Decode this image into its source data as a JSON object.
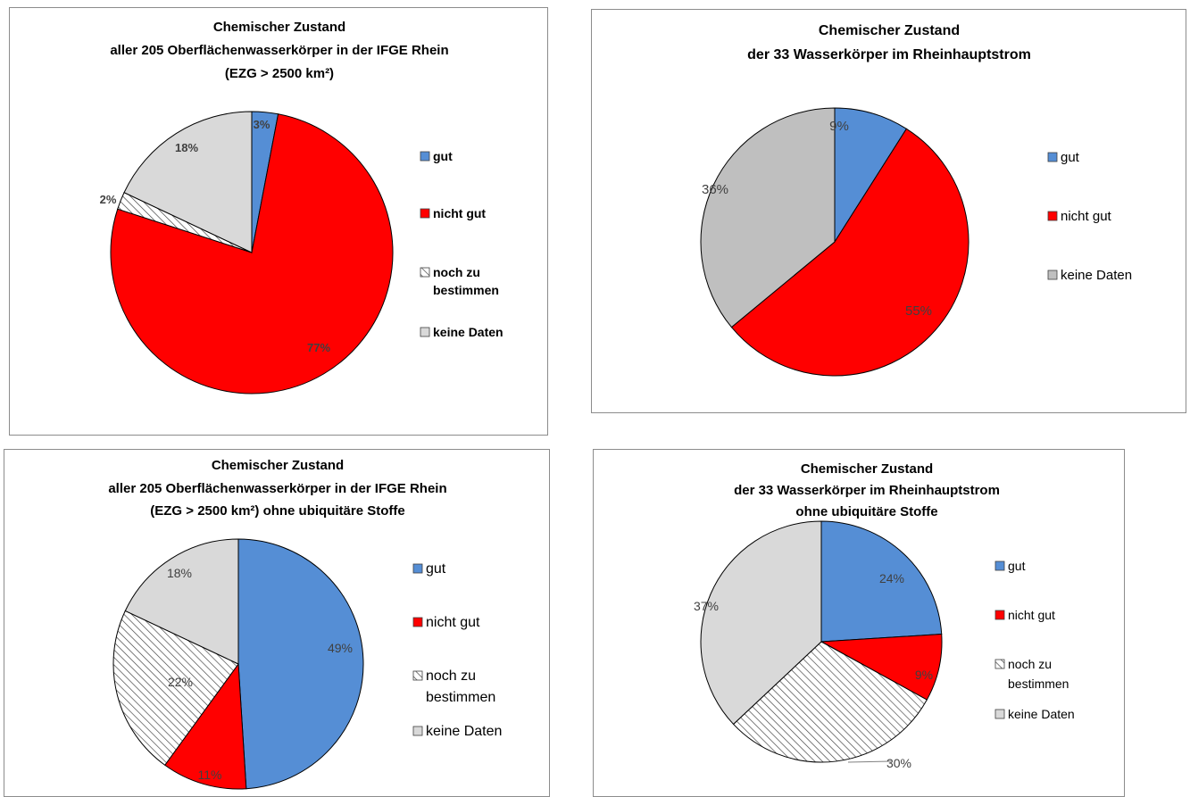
{
  "colors": {
    "gut": "#558ed5",
    "nicht_gut": "#ff0000",
    "noch_zu_bestimmen": "hatch",
    "keine_Daten_light": "#d9d9d9",
    "keine_Daten_dark": "#bfbfbf"
  },
  "chart_data": [
    {
      "type": "pie",
      "title": [
        "Chemischer Zustand",
        "aller 205 Oberflächenwasserkörper  in der IFGE Rhein",
        "(EZG > 2500 km²)"
      ],
      "legend_position": "right",
      "label_weight": "bold",
      "slices": [
        {
          "name": "gut",
          "value": 3,
          "label": "3%",
          "color": "#558ed5"
        },
        {
          "name": "nicht gut",
          "value": 77,
          "label": "77%",
          "color": "#ff0000"
        },
        {
          "name": "noch zu bestimmen",
          "value": 2,
          "label": "2%",
          "color": "hatch"
        },
        {
          "name": "keine Daten",
          "value": 18,
          "label": "18%",
          "color": "#d9d9d9"
        }
      ],
      "legend": [
        [
          "gut"
        ],
        [
          "nicht gut"
        ],
        [
          "noch zu",
          "bestimmen"
        ],
        [
          "keine Daten"
        ]
      ]
    },
    {
      "type": "pie",
      "title": [
        "Chemischer Zustand",
        "der 33 Wasserkörper im Rheinhauptstrom"
      ],
      "legend_position": "right",
      "label_weight": "normal",
      "slices": [
        {
          "name": "gut",
          "value": 9,
          "label": "9%",
          "color": "#558ed5"
        },
        {
          "name": "nicht gut",
          "value": 55,
          "label": "55%",
          "color": "#ff0000"
        },
        {
          "name": "keine Daten",
          "value": 36,
          "label": "36%",
          "color": "#bfbfbf"
        }
      ],
      "legend": [
        [
          "gut"
        ],
        [
          "nicht gut"
        ],
        [
          "keine Daten"
        ]
      ]
    },
    {
      "type": "pie",
      "title": [
        "Chemischer Zustand",
        "aller 205 Oberflächenwasserkörper in der IFGE Rhein",
        "(EZG > 2500 km²)  ohne ubiquitäre Stoffe"
      ],
      "legend_position": "right",
      "label_weight": "normal",
      "slices": [
        {
          "name": "gut",
          "value": 49,
          "label": "49%",
          "color": "#558ed5"
        },
        {
          "name": "nicht gut",
          "value": 11,
          "label": "11%",
          "color": "#ff0000"
        },
        {
          "name": "noch zu bestimmen",
          "value": 22,
          "label": "22%",
          "color": "hatch"
        },
        {
          "name": "keine Daten",
          "value": 18,
          "label": "18%",
          "color": "#d9d9d9"
        }
      ],
      "legend": [
        [
          "gut"
        ],
        [
          "nicht gut"
        ],
        [
          "noch zu",
          "bestimmen"
        ],
        [
          "keine Daten"
        ]
      ]
    },
    {
      "type": "pie",
      "title": [
        "Chemischer Zustand",
        "der 33 Wasserkörper im Rheinhauptstrom",
        "ohne ubiquitäre Stoffe"
      ],
      "legend_position": "right",
      "label_weight": "normal",
      "slices": [
        {
          "name": "gut",
          "value": 24,
          "label": "24%",
          "color": "#558ed5"
        },
        {
          "name": "nicht gut",
          "value": 9,
          "label": "9%",
          "color": "#ff0000"
        },
        {
          "name": "noch zu bestimmen",
          "value": 30,
          "label": "30%",
          "color": "hatch"
        },
        {
          "name": "keine Daten",
          "value": 37,
          "label": "37%",
          "color": "#d9d9d9"
        }
      ],
      "legend": [
        [
          "gut"
        ],
        [
          "nicht gut"
        ],
        [
          "noch zu",
          "bestimmen"
        ],
        [
          "keine Daten"
        ]
      ]
    }
  ]
}
